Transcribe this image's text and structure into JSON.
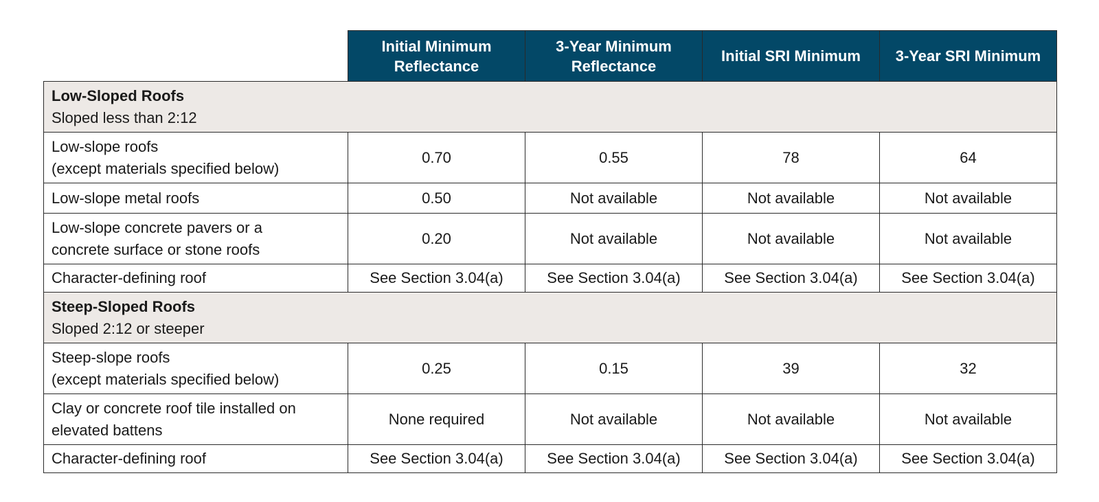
{
  "headers": [
    "Initial Minimum Reflectance",
    "3-Year Minimum Reflectance",
    "Initial SRI Minimum",
    "3-Year SRI Minimum"
  ],
  "sections": [
    {
      "title": "Low-Sloped Roofs",
      "subtitle": "Sloped less than 2:12",
      "rows": [
        {
          "label_lines": [
            "Low-slope roofs",
            "(except materials specified below)"
          ],
          "values": [
            "0.70",
            "0.55",
            "78",
            "64"
          ]
        },
        {
          "label_lines": [
            "Low-slope metal roofs"
          ],
          "values": [
            "0.50",
            "Not available",
            "Not available",
            "Not available"
          ]
        },
        {
          "label_lines": [
            "Low-slope concrete pavers or a",
            "concrete surface or stone roofs"
          ],
          "values": [
            "0.20",
            "Not available",
            "Not available",
            "Not available"
          ]
        },
        {
          "label_lines": [
            "Character-defining roof"
          ],
          "values": [
            "See Section 3.04(a)",
            "See Section 3.04(a)",
            "See Section 3.04(a)",
            "See Section 3.04(a)"
          ]
        }
      ]
    },
    {
      "title": "Steep-Sloped Roofs",
      "subtitle": "Sloped 2:12 or steeper",
      "rows": [
        {
          "label_lines": [
            "Steep-slope roofs",
            "(except materials specified below)"
          ],
          "values": [
            "0.25",
            "0.15",
            "39",
            "32"
          ]
        },
        {
          "label_lines": [
            "Clay or concrete roof tile installed on",
            "elevated battens"
          ],
          "values": [
            "None required",
            "Not available",
            "Not available",
            "Not available"
          ]
        },
        {
          "label_lines": [
            "Character-defining roof"
          ],
          "values": [
            "See Section 3.04(a)",
            "See Section 3.04(a)",
            "See Section 3.04(a)",
            "See Section 3.04(a)"
          ]
        }
      ]
    }
  ],
  "colors": {
    "header_background": "#034867",
    "header_text": "#ffffff",
    "section_background": "#ede9e6",
    "border": "#2a2a2a"
  }
}
